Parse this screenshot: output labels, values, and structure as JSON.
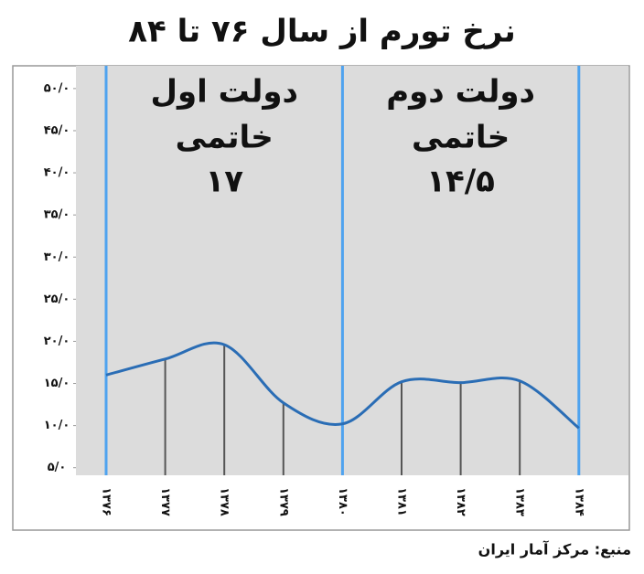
{
  "chart_data": {
    "type": "line",
    "title": "نرخ تورم از سال ۷۶ تا ۸۴",
    "categories": [
      "۱۳۷۶",
      "۱۳۷۷",
      "۱۳۷۸",
      "۱۳۷۹",
      "۱۳۸۰",
      "۱۳۸۱",
      "۱۳۸۲",
      "۱۳۸۳",
      "۱۳۸۴"
    ],
    "values": [
      16,
      17.9,
      19.6,
      12.7,
      10.2,
      15.2,
      15.1,
      15.3,
      9.7
    ],
    "color": "#2a6db5",
    "ylim": [
      4.1,
      52.7
    ],
    "yticks": [
      {
        "value": 5,
        "label": "۵/۰"
      },
      {
        "value": 10,
        "label": "۱۰/۰"
      },
      {
        "value": 15,
        "label": "۱۵/۰"
      },
      {
        "value": 20,
        "label": "۲۰/۰"
      },
      {
        "value": 25,
        "label": "۲۵/۰"
      },
      {
        "value": 30,
        "label": "۳۰/۰"
      },
      {
        "value": 35,
        "label": "۳۵/۰"
      },
      {
        "value": 40,
        "label": "۴۰/۰"
      },
      {
        "value": 45,
        "label": "۴۵/۰"
      },
      {
        "value": 50,
        "label": "۵۰/۰"
      }
    ],
    "grid": false,
    "annotations": [
      [
        "دولت اول",
        "خاتمی",
        "۱۷"
      ],
      [
        "دولت دوم",
        "خاتمی",
        "۱۴/۵"
      ]
    ],
    "source": "منبع: مرکز آمار ایران"
  }
}
